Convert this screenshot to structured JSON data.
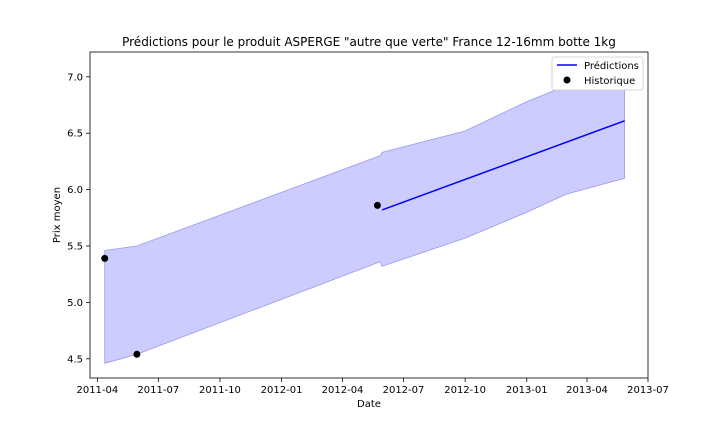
{
  "chart_data": {
    "type": "line",
    "title": "Prédictions pour le produit ASPERGE \"autre que verte\" France 12-16mm botte 1kg",
    "xlabel": "Date",
    "ylabel": "Prix moyen",
    "xlim": [
      "2011-03-21",
      "2013-07-01"
    ],
    "ylim": [
      4.33,
      7.22
    ],
    "x_ticks": [
      "2011-04",
      "2011-07",
      "2011-10",
      "2012-01",
      "2012-04",
      "2012-07",
      "2012-10",
      "2013-01",
      "2013-04",
      "2013-07"
    ],
    "y_ticks": [
      4.5,
      5.0,
      5.5,
      6.0,
      6.5,
      7.0
    ],
    "y_tick_labels": [
      "4.5",
      "5.0",
      "5.5",
      "6.0",
      "6.5",
      "7.0"
    ],
    "legend": {
      "placement": "top-right",
      "entries": [
        "Prédictions",
        "Historique"
      ]
    },
    "series": [
      {
        "name": "Prédictions",
        "kind": "line",
        "color": "#0000ff",
        "points": [
          {
            "x": "2012-05-30",
            "y": 5.82
          },
          {
            "x": "2013-05-27",
            "y": 6.61
          }
        ]
      },
      {
        "name": "Historique",
        "kind": "scatter",
        "color": "#000000",
        "points": [
          {
            "x": "2011-04-12",
            "y": 5.39
          },
          {
            "x": "2011-05-30",
            "y": 4.54
          },
          {
            "x": "2012-05-23",
            "y": 5.86
          }
        ]
      }
    ],
    "band": {
      "color": "#ccccff",
      "edge_color": "#9999ee",
      "upper": [
        {
          "x": "2011-04-12",
          "y": 5.46
        },
        {
          "x": "2011-05-30",
          "y": 5.5
        },
        {
          "x": "2012-05-27",
          "y": 6.3
        },
        {
          "x": "2012-05-30",
          "y": 6.33
        },
        {
          "x": "2012-10-01",
          "y": 6.52
        },
        {
          "x": "2013-01-01",
          "y": 6.78
        },
        {
          "x": "2013-03-01",
          "y": 6.92
        },
        {
          "x": "2013-05-27",
          "y": 7.04
        }
      ],
      "lower": [
        {
          "x": "2011-04-12",
          "y": 4.46
        },
        {
          "x": "2011-05-30",
          "y": 4.54
        },
        {
          "x": "2012-05-27",
          "y": 5.36
        },
        {
          "x": "2012-05-30",
          "y": 5.32
        },
        {
          "x": "2012-10-01",
          "y": 5.57
        },
        {
          "x": "2013-01-01",
          "y": 5.8
        },
        {
          "x": "2013-03-01",
          "y": 5.96
        },
        {
          "x": "2013-05-27",
          "y": 6.1
        }
      ]
    }
  }
}
